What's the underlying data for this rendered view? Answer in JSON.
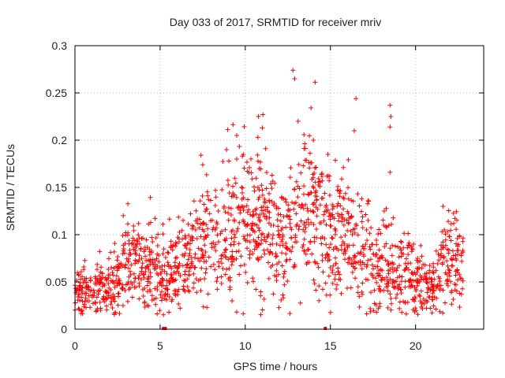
{
  "chart_data": {
    "type": "scatter",
    "title": "Day 033 of 2017, SRMTID for receiver mriv",
    "xlabel": "GPS time / hours",
    "ylabel": "SRMTID / TECUs",
    "xlim": [
      0,
      24
    ],
    "ylim": [
      0,
      0.3
    ],
    "x_ticks": [
      0,
      5,
      10,
      15,
      20
    ],
    "x_tick_labels": [
      "0",
      "5",
      "10",
      "15",
      "20"
    ],
    "y_ticks": [
      0,
      0.05,
      0.1,
      0.15,
      0.2,
      0.25,
      0.3
    ],
    "y_tick_labels": [
      "0",
      "0.05",
      "0.1",
      "0.15",
      "0.2",
      "0.25",
      "0.3"
    ],
    "grid": true,
    "marker": "+",
    "color": "#ff0000",
    "trend": [
      {
        "x": 0.0,
        "y": 0.035
      },
      {
        "x": 1.0,
        "y": 0.042
      },
      {
        "x": 2.0,
        "y": 0.045
      },
      {
        "x": 2.5,
        "y": 0.05
      },
      {
        "x": 3.0,
        "y": 0.075
      },
      {
        "x": 4.0,
        "y": 0.06
      },
      {
        "x": 4.7,
        "y": 0.065
      },
      {
        "x": 5.3,
        "y": 0.05
      },
      {
        "x": 6.0,
        "y": 0.065
      },
      {
        "x": 7.0,
        "y": 0.08
      },
      {
        "x": 8.0,
        "y": 0.09
      },
      {
        "x": 9.0,
        "y": 0.1
      },
      {
        "x": 9.7,
        "y": 0.12
      },
      {
        "x": 10.5,
        "y": 0.115
      },
      {
        "x": 11.2,
        "y": 0.11
      },
      {
        "x": 12.0,
        "y": 0.09
      },
      {
        "x": 12.8,
        "y": 0.11
      },
      {
        "x": 13.5,
        "y": 0.13
      },
      {
        "x": 14.3,
        "y": 0.12
      },
      {
        "x": 15.0,
        "y": 0.09
      },
      {
        "x": 15.7,
        "y": 0.1
      },
      {
        "x": 16.5,
        "y": 0.09
      },
      {
        "x": 17.5,
        "y": 0.07
      },
      {
        "x": 18.5,
        "y": 0.06
      },
      {
        "x": 19.5,
        "y": 0.06
      },
      {
        "x": 20.5,
        "y": 0.045
      },
      {
        "x": 21.0,
        "y": 0.04
      },
      {
        "x": 21.8,
        "y": 0.07
      },
      {
        "x": 22.5,
        "y": 0.08
      },
      {
        "x": 22.8,
        "y": 0.075
      }
    ],
    "spread_fraction": 0.35,
    "n_points": 1700,
    "highlight_points": [
      {
        "x": 12.8,
        "y": 0.274
      },
      {
        "x": 12.9,
        "y": 0.265
      },
      {
        "x": 16.5,
        "y": 0.244
      },
      {
        "x": 18.5,
        "y": 0.237
      },
      {
        "x": 18.55,
        "y": 0.225
      },
      {
        "x": 18.5,
        "y": 0.214
      },
      {
        "x": 11.0,
        "y": 0.213
      },
      {
        "x": 9.5,
        "y": 0.205
      },
      {
        "x": 13.1,
        "y": 0.22
      },
      {
        "x": 14.0,
        "y": 0.2
      },
      {
        "x": 16.4,
        "y": 0.21
      },
      {
        "x": 18.5,
        "y": 0.166
      },
      {
        "x": 7.5,
        "y": 0.174
      },
      {
        "x": 8.9,
        "y": 0.19
      }
    ],
    "baseline_points": [
      {
        "x": 5.2,
        "y": 0.0
      },
      {
        "x": 5.3,
        "y": 0.0
      },
      {
        "x": 14.7,
        "y": 0.0
      }
    ]
  }
}
